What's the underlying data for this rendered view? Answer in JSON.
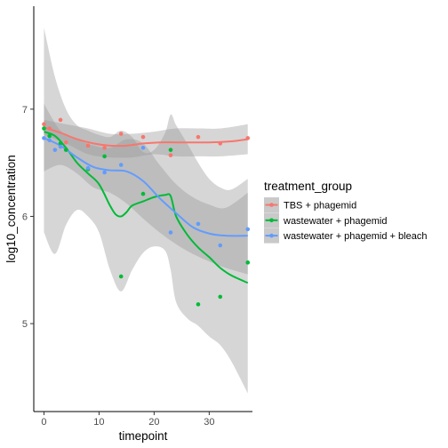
{
  "chart_data": {
    "type": "scatter",
    "xlabel": "timepoint",
    "ylabel": "log10_concentration",
    "xlim": [
      -1.85,
      37.85
    ],
    "ylim": [
      4.18,
      7.96
    ],
    "x_ticks": [
      0,
      10,
      20,
      30
    ],
    "y_ticks": [
      5,
      6,
      7
    ],
    "x_tick_labels": [
      "0",
      "10",
      "20",
      "30"
    ],
    "y_tick_labels": [
      "5",
      "6",
      "7"
    ],
    "grid": false,
    "legend": {
      "title": "treatment_group",
      "placement": "right",
      "entries": [
        "TBS + phagemid",
        "wastewater + phagemid",
        "wastewater + phagemid + bleach"
      ]
    },
    "series": [
      {
        "name": "TBS + phagemid",
        "color": "#F8766D",
        "points": [
          [
            0,
            6.86
          ],
          [
            1,
            6.82
          ],
          [
            3,
            6.9
          ],
          [
            4,
            6.69
          ],
          [
            8,
            6.66
          ],
          [
            11,
            6.64
          ],
          [
            14,
            6.77
          ],
          [
            18,
            6.74
          ],
          [
            23,
            6.57
          ],
          [
            28,
            6.74
          ],
          [
            32,
            6.68
          ],
          [
            37,
            6.73
          ]
        ],
        "smooth": [
          [
            0,
            6.83
          ],
          [
            3,
            6.78
          ],
          [
            6,
            6.72
          ],
          [
            9,
            6.68
          ],
          [
            12,
            6.66
          ],
          [
            15,
            6.66
          ],
          [
            18,
            6.68
          ],
          [
            21,
            6.69
          ],
          [
            24,
            6.69
          ],
          [
            27,
            6.69
          ],
          [
            30,
            6.69
          ],
          [
            34,
            6.7
          ],
          [
            37,
            6.72
          ]
        ],
        "band_upper": [
          [
            0,
            6.9
          ],
          [
            4,
            6.86
          ],
          [
            8,
            6.82
          ],
          [
            12,
            6.77
          ],
          [
            16,
            6.77
          ],
          [
            20,
            6.79
          ],
          [
            24,
            6.82
          ],
          [
            28,
            6.82
          ],
          [
            32,
            6.82
          ],
          [
            37,
            6.86
          ]
        ],
        "band_lower": [
          [
            0,
            6.76
          ],
          [
            4,
            6.68
          ],
          [
            8,
            6.58
          ],
          [
            12,
            6.55
          ],
          [
            16,
            6.55
          ],
          [
            20,
            6.58
          ],
          [
            24,
            6.56
          ],
          [
            28,
            6.56
          ],
          [
            32,
            6.56
          ],
          [
            37,
            6.58
          ]
        ]
      },
      {
        "name": "wastewater + phagemid",
        "color": "#00BA38",
        "points": [
          [
            0,
            6.82
          ],
          [
            1,
            6.75
          ],
          [
            3,
            6.68
          ],
          [
            4,
            6.62
          ],
          [
            8,
            6.44
          ],
          [
            11,
            6.56
          ],
          [
            14,
            5.44
          ],
          [
            18,
            6.21
          ],
          [
            23,
            6.62
          ],
          [
            28,
            5.18
          ],
          [
            32,
            5.25
          ],
          [
            37,
            5.57
          ]
        ],
        "smooth": [
          [
            0,
            6.79
          ],
          [
            2,
            6.75
          ],
          [
            4,
            6.64
          ],
          [
            6,
            6.5
          ],
          [
            8,
            6.4
          ],
          [
            10,
            6.3
          ],
          [
            12,
            6.1
          ],
          [
            13,
            6.02
          ],
          [
            14,
            6.0
          ],
          [
            15,
            6.04
          ],
          [
            16,
            6.1
          ],
          [
            18,
            6.14
          ],
          [
            20,
            6.18
          ],
          [
            22,
            6.2
          ],
          [
            23,
            6.19
          ],
          [
            24,
            6.0
          ],
          [
            26,
            5.83
          ],
          [
            28,
            5.71
          ],
          [
            30,
            5.62
          ],
          [
            32,
            5.52
          ],
          [
            34,
            5.45
          ],
          [
            37,
            5.38
          ]
        ],
        "band_upper": [
          [
            0,
            7.76
          ],
          [
            2,
            7.3
          ],
          [
            4,
            7.0
          ],
          [
            6,
            6.85
          ],
          [
            8,
            6.8
          ],
          [
            10,
            6.76
          ],
          [
            12,
            6.74
          ],
          [
            14,
            6.8
          ],
          [
            16,
            6.74
          ],
          [
            18,
            6.6
          ],
          [
            20,
            6.62
          ],
          [
            22,
            6.78
          ],
          [
            23,
            6.95
          ],
          [
            24,
            6.85
          ],
          [
            26,
            6.68
          ],
          [
            28,
            6.5
          ],
          [
            30,
            6.35
          ],
          [
            32,
            6.27
          ],
          [
            34,
            6.25
          ],
          [
            37,
            6.35
          ]
        ],
        "band_lower": [
          [
            0,
            5.85
          ],
          [
            2,
            5.65
          ],
          [
            4,
            5.92
          ],
          [
            6,
            6.06
          ],
          [
            8,
            6.0
          ],
          [
            10,
            5.85
          ],
          [
            12,
            5.5
          ],
          [
            14,
            5.3
          ],
          [
            16,
            5.5
          ],
          [
            18,
            5.66
          ],
          [
            20,
            5.72
          ],
          [
            22,
            5.68
          ],
          [
            23,
            5.5
          ],
          [
            24,
            5.2
          ],
          [
            26,
            5.05
          ],
          [
            28,
            4.98
          ],
          [
            30,
            4.88
          ],
          [
            32,
            4.8
          ],
          [
            34,
            4.65
          ],
          [
            37,
            4.35
          ]
        ]
      },
      {
        "name": "wastewater + phagemid + bleach",
        "color": "#619CFF",
        "points": [
          [
            0,
            6.73
          ],
          [
            1,
            6.71
          ],
          [
            2,
            6.62
          ],
          [
            3,
            6.65
          ],
          [
            8,
            6.45
          ],
          [
            11,
            6.41
          ],
          [
            14,
            6.48
          ],
          [
            18,
            6.64
          ],
          [
            23,
            5.85
          ],
          [
            28,
            5.93
          ],
          [
            32,
            5.73
          ],
          [
            37,
            5.88
          ]
        ],
        "smooth": [
          [
            0,
            6.73
          ],
          [
            3,
            6.66
          ],
          [
            6,
            6.55
          ],
          [
            9,
            6.46
          ],
          [
            12,
            6.43
          ],
          [
            15,
            6.42
          ],
          [
            18,
            6.33
          ],
          [
            21,
            6.17
          ],
          [
            24,
            6.03
          ],
          [
            27,
            5.9
          ],
          [
            30,
            5.84
          ],
          [
            33,
            5.82
          ],
          [
            37,
            5.82
          ]
        ],
        "band_upper": [
          [
            0,
            7.05
          ],
          [
            3,
            6.8
          ],
          [
            6,
            6.72
          ],
          [
            9,
            6.66
          ],
          [
            12,
            6.64
          ],
          [
            15,
            6.72
          ],
          [
            18,
            6.68
          ],
          [
            21,
            6.48
          ],
          [
            24,
            6.3
          ],
          [
            27,
            6.18
          ],
          [
            30,
            6.11
          ],
          [
            33,
            6.08
          ],
          [
            37,
            6.22
          ]
        ],
        "band_lower": [
          [
            0,
            6.42
          ],
          [
            3,
            6.48
          ],
          [
            6,
            6.4
          ],
          [
            9,
            6.27
          ],
          [
            12,
            6.22
          ],
          [
            15,
            6.12
          ],
          [
            18,
            5.98
          ],
          [
            21,
            5.85
          ],
          [
            24,
            5.74
          ],
          [
            27,
            5.65
          ],
          [
            30,
            5.58
          ],
          [
            33,
            5.52
          ],
          [
            37,
            5.46
          ]
        ]
      }
    ]
  }
}
